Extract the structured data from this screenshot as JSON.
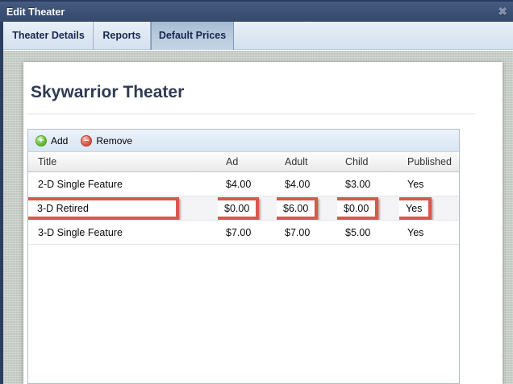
{
  "window": {
    "title": "Edit Theater"
  },
  "icons": {
    "close": "✖",
    "add": "+",
    "remove": "−"
  },
  "tabs": [
    {
      "label": "Theater Details",
      "selected": false
    },
    {
      "label": "Reports",
      "selected": false
    },
    {
      "label": "Default Prices",
      "selected": true
    }
  ],
  "page": {
    "heading": "Skywarrior Theater"
  },
  "toolbar": {
    "add_label": "Add",
    "remove_label": "Remove"
  },
  "table": {
    "columns": [
      "Title",
      "Ad",
      "Adult",
      "Child",
      "Published"
    ],
    "rows": [
      {
        "title": "2-D Single Feature",
        "ad": "$4.00",
        "adult": "$4.00",
        "child": "$3.00",
        "published": "Yes",
        "highlighted": false
      },
      {
        "title": "3-D Retired",
        "ad": "$0.00",
        "adult": "$6.00",
        "child": "$0.00",
        "published": "Yes",
        "highlighted": true
      },
      {
        "title": "3-D Single Feature",
        "ad": "$7.00",
        "adult": "$7.00",
        "child": "$5.00",
        "published": "Yes",
        "highlighted": false
      }
    ]
  },
  "colors": {
    "annotation_red": "#d6594c",
    "titlebar_navy": "#3b5074",
    "selected_tab_blue": "#b7c9dc",
    "add_green": "#6cc244",
    "remove_red": "#e0604d"
  }
}
